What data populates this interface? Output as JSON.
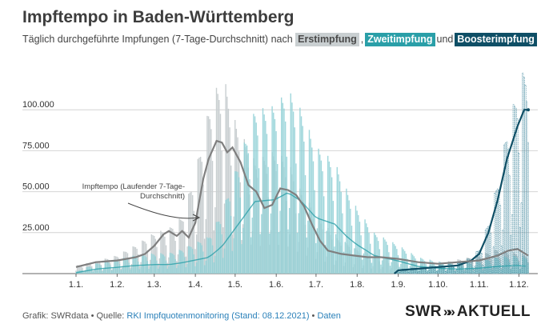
{
  "title": "Impftempo in Baden-Württemberg",
  "subtitle": {
    "prefix": "Täglich durchgeführte Impfungen (7-Tage-Durchschnitt) nach ",
    "erst": "Erstimpfung",
    "sep1": ",",
    "zweit": "Zweitimpfung",
    "und": "und",
    "boost": "Boosterimpfung"
  },
  "footer": {
    "prefix": "Grafik: SWRdata • Quelle: ",
    "source_link": "RKI Impfquotenmonitoring (Stand: 08.12.2021)",
    "sep": " • ",
    "data_link": "Daten"
  },
  "logo": {
    "left": "SWR",
    "arrows": "»»",
    "right": "AKTUELL"
  },
  "colors": {
    "erst": "#c9cfd1",
    "zweit": "#8fd0d6",
    "zweit_bar": "#6fb9bf",
    "boost": "#0f4f66",
    "trend": "#7f7f7f",
    "grid": "#d4d4d4"
  },
  "chart_data": {
    "type": "bar",
    "ylim": [
      0,
      125000
    ],
    "y_ticks": [
      25000,
      50000,
      75000,
      100000
    ],
    "y_tick_labels": [
      "25.000",
      "50.000",
      "75.000",
      "100.000"
    ],
    "x_tick_labels": [
      "1.1.",
      "1.2.",
      "1.3.",
      "1.4.",
      "1.5.",
      "1.6.",
      "1.7.",
      "1.8.",
      "1.9.",
      "1.10.",
      "1.11.",
      "1.12."
    ],
    "annotation": "Impftempo (Laufender 7-Tage-Durchschnitt)",
    "annotation_lines": [
      "Impftempo (Laufender 7-Tage-",
      "Durchschnitt)"
    ],
    "series": [
      {
        "name": "Erstimpfung",
        "points": [
          [
            0,
            4000
          ],
          [
            15,
            6000
          ],
          [
            31,
            9000
          ],
          [
            45,
            14000
          ],
          [
            59,
            20000
          ],
          [
            70,
            22000
          ],
          [
            80,
            28000
          ],
          [
            90,
            50000
          ],
          [
            100,
            80000
          ],
          [
            105,
            90000
          ],
          [
            112,
            95000
          ],
          [
            120,
            75000
          ],
          [
            135,
            55000
          ],
          [
            150,
            60000
          ],
          [
            160,
            55000
          ],
          [
            170,
            40000
          ],
          [
            181,
            30000
          ],
          [
            195,
            18000
          ],
          [
            212,
            12000
          ],
          [
            225,
            10000
          ],
          [
            243,
            7000
          ],
          [
            258,
            6000
          ],
          [
            273,
            5000
          ],
          [
            288,
            7000
          ],
          [
            304,
            9000
          ],
          [
            318,
            12000
          ],
          [
            333,
            10000
          ],
          [
            341,
            9000
          ]
        ]
      },
      {
        "name": "Zweitimpfung",
        "points": [
          [
            0,
            1000
          ],
          [
            15,
            5000
          ],
          [
            31,
            7000
          ],
          [
            45,
            9000
          ],
          [
            59,
            10000
          ],
          [
            70,
            10000
          ],
          [
            80,
            12000
          ],
          [
            90,
            15000
          ],
          [
            100,
            18000
          ],
          [
            110,
            30000
          ],
          [
            120,
            50000
          ],
          [
            135,
            80000
          ],
          [
            150,
            82000
          ],
          [
            160,
            90000
          ],
          [
            170,
            80000
          ],
          [
            181,
            62000
          ],
          [
            195,
            55000
          ],
          [
            205,
            40000
          ],
          [
            212,
            32000
          ],
          [
            225,
            20000
          ],
          [
            243,
            14000
          ],
          [
            258,
            8000
          ],
          [
            273,
            6000
          ],
          [
            288,
            5000
          ],
          [
            304,
            6000
          ],
          [
            318,
            8000
          ],
          [
            333,
            9000
          ],
          [
            341,
            8000
          ]
        ]
      },
      {
        "name": "Boosterimpfung",
        "points": [
          [
            0,
            0
          ],
          [
            240,
            0
          ],
          [
            243,
            2000
          ],
          [
            258,
            3000
          ],
          [
            273,
            4000
          ],
          [
            288,
            5000
          ],
          [
            298,
            8000
          ],
          [
            304,
            12000
          ],
          [
            311,
            25000
          ],
          [
            318,
            45000
          ],
          [
            325,
            70000
          ],
          [
            333,
            90000
          ],
          [
            338,
            100000
          ],
          [
            341,
            100000
          ]
        ]
      },
      {
        "name": "Impftempo",
        "points": [
          [
            0,
            4000
          ],
          [
            15,
            7000
          ],
          [
            31,
            8000
          ],
          [
            45,
            10000
          ],
          [
            52,
            12000
          ],
          [
            59,
            17000
          ],
          [
            66,
            24000
          ],
          [
            70,
            26000
          ],
          [
            76,
            23000
          ],
          [
            80,
            26000
          ],
          [
            85,
            22000
          ],
          [
            90,
            31000
          ],
          [
            96,
            58000
          ],
          [
            100,
            70000
          ],
          [
            106,
            81000
          ],
          [
            110,
            80000
          ],
          [
            114,
            74000
          ],
          [
            118,
            77000
          ],
          [
            124,
            68000
          ],
          [
            130,
            54000
          ],
          [
            136,
            50000
          ],
          [
            142,
            40000
          ],
          [
            148,
            42000
          ],
          [
            154,
            52000
          ],
          [
            160,
            51000
          ],
          [
            166,
            48000
          ],
          [
            172,
            41000
          ],
          [
            178,
            30000
          ],
          [
            184,
            20000
          ],
          [
            190,
            14000
          ],
          [
            200,
            12000
          ],
          [
            210,
            11000
          ],
          [
            220,
            10000
          ],
          [
            230,
            10000
          ],
          [
            243,
            9000
          ],
          [
            258,
            7000
          ],
          [
            273,
            6000
          ],
          [
            288,
            7000
          ],
          [
            304,
            8000
          ],
          [
            318,
            11000
          ],
          [
            326,
            14000
          ],
          [
            333,
            15000
          ],
          [
            341,
            11000
          ]
        ]
      }
    ]
  }
}
